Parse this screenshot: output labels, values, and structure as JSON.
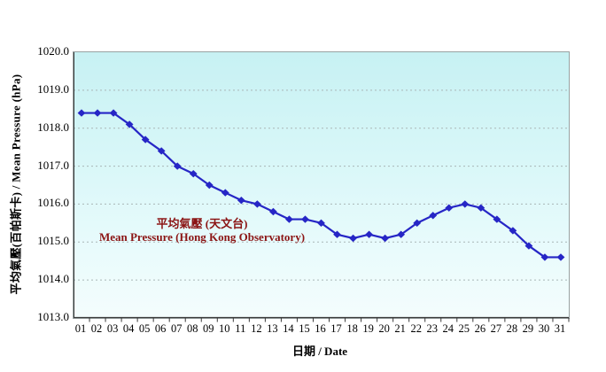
{
  "chart": {
    "y_axis": {
      "title": "平均氣壓(百帕斯卡) / Mean Pressure (hPa)",
      "tick_labels": [
        "1020.0",
        "1019.0",
        "1018.0",
        "1017.0",
        "1016.0",
        "1015.0",
        "1014.0",
        "1013.0"
      ]
    },
    "x_axis": {
      "title": "日期 / Date"
    },
    "legend": {
      "line1": "平均氣壓 (天文台)",
      "line2": "Mean Pressure (Hong Kong Observatory)",
      "text_color": "#8b1414"
    }
  },
  "chart_data": {
    "type": "line",
    "title": "",
    "xlabel": "日期 / Date",
    "ylabel": "平均氣壓(百帕斯卡) / Mean Pressure (hPa)",
    "x": [
      "01",
      "02",
      "03",
      "04",
      "05",
      "06",
      "07",
      "08",
      "09",
      "10",
      "11",
      "12",
      "13",
      "14",
      "15",
      "16",
      "17",
      "18",
      "19",
      "20",
      "21",
      "22",
      "23",
      "24",
      "25",
      "26",
      "27",
      "28",
      "29",
      "30",
      "31"
    ],
    "series": [
      {
        "name": "平均氣壓 (天文台) / Mean Pressure (Hong Kong Observatory)",
        "values": [
          1018.4,
          1018.4,
          1018.4,
          1018.1,
          1017.7,
          1017.4,
          1017.0,
          1016.8,
          1016.5,
          1016.3,
          1016.1,
          1016.0,
          1015.8,
          1015.6,
          1015.6,
          1015.5,
          1015.2,
          1015.1,
          1015.2,
          1015.1,
          1015.2,
          1015.5,
          1015.7,
          1015.9,
          1016.0,
          1015.9,
          1015.6,
          1015.3,
          1014.9,
          1014.6,
          1014.6
        ]
      }
    ],
    "ylim": [
      1013.0,
      1020.0
    ],
    "ytick_step": 1.0,
    "grid": "horizontal-dashed",
    "gridline_values": [
      1019,
      1018,
      1017,
      1016,
      1015,
      1014
    ],
    "legend_position": "inside-plot-left-center",
    "marker": "diamond",
    "line_color": "#2626c6",
    "marker_color": "#2626c6",
    "gridline_color": "#a9b6b6",
    "axis_color": "#3a3a3a",
    "plot_bg_top": "#c7f1f3",
    "plot_bg_bottom": "#f4fdfd"
  }
}
